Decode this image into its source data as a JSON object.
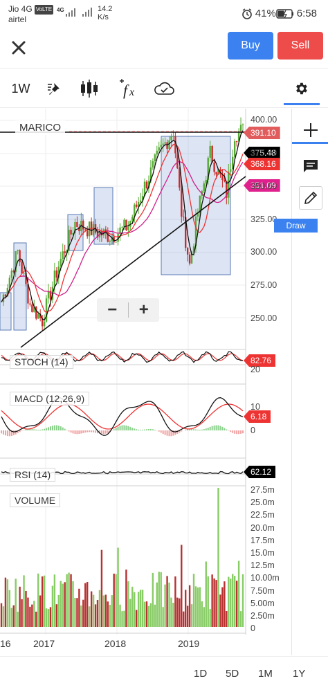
{
  "status_bar": {
    "carrier1": "Jio 4G",
    "volte": "VoLTE",
    "carrier2": "airtel",
    "network": "4G",
    "speed_value": "14.2",
    "speed_unit": "K/s",
    "battery": "41%",
    "time": "6:58"
  },
  "header": {
    "close_icon": "close-icon",
    "buy_label": "Buy",
    "sell_label": "Sell",
    "buy_color": "#3b82f0",
    "sell_color": "#ee4b4b"
  },
  "toolbar": {
    "interval": "1W",
    "icons": [
      "pin-icon",
      "candlestick-icon",
      "fx-icon",
      "cloud-icon",
      "gear-icon"
    ]
  },
  "chart": {
    "symbol": "MARICO",
    "price_tags": {
      "last": "391.10",
      "ma1": "375.48",
      "ma2": "368.16",
      "ma3": "351.09"
    },
    "price_axis": [
      "400.00",
      "375.00",
      "350.00",
      "325.00",
      "300.00",
      "275.00",
      "250.00"
    ],
    "stoch": {
      "label": "STOCH (14)",
      "value": "82.76",
      "axis": [
        "80",
        "20"
      ]
    },
    "macd": {
      "label": "MACD (12,26,9)",
      "value": "6.18",
      "axis": [
        "10",
        "0"
      ]
    },
    "rsi": {
      "label": "RSI (14)",
      "value": "62.12"
    },
    "volume": {
      "label": "VOLUME",
      "axis": [
        "27.5m",
        "25.0m",
        "22.5m",
        "20.0m",
        "17.5m",
        "15.0m",
        "12.5m",
        "10.00m",
        "7.50m",
        "5.00m",
        "2.50m",
        "0"
      ]
    },
    "dates": [
      "16",
      "2017",
      "2018",
      "2019"
    ],
    "zoom": {
      "minus": "−",
      "plus": "+"
    }
  },
  "chart_data": {
    "type": "candlestick",
    "symbol": "MARICO",
    "interval": "1W",
    "x_labels": [
      "2017",
      "2018",
      "2019"
    ],
    "ylim": [
      235,
      405
    ],
    "last_price": 391.1,
    "overlay_values": [
      375.48,
      368.16,
      351.09
    ],
    "indicators": {
      "stoch_14": 82.76,
      "macd_12_26_9": 6.18,
      "rsi_14": 62.12
    },
    "volume_ylim_m": [
      0,
      27.5
    ]
  },
  "side_panel": {
    "icons": [
      "crosshair-icon",
      "chat-icon",
      "pencil-icon"
    ],
    "draw_tip": "Draw",
    "accent": "#3b82f0"
  },
  "ranges": [
    "1D",
    "5D",
    "1M",
    "1Y"
  ]
}
